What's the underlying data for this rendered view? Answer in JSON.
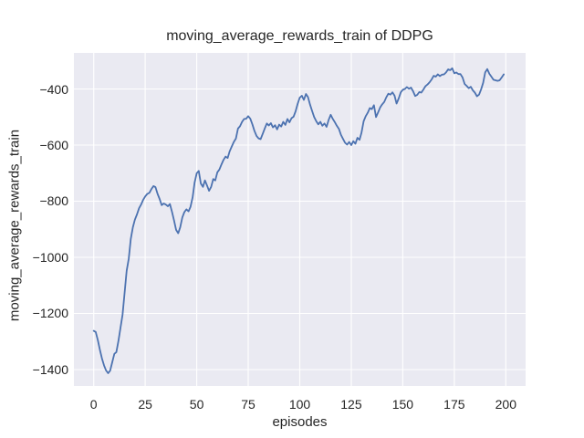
{
  "chart": {
    "title": "moving_average_rewards_train of DDPG",
    "xlabel": "episodes",
    "ylabel": "moving_average_rewards_train"
  },
  "chart_data": {
    "type": "line",
    "title": "moving_average_rewards_train of DDPG",
    "xlabel": "episodes",
    "ylabel": "moving_average_rewards_train",
    "x_description": "episode index, one data point per episode from 0 to 199",
    "values": [
      -1262,
      -1266,
      -1295,
      -1330,
      -1360,
      -1385,
      -1403,
      -1413,
      -1404,
      -1374,
      -1344,
      -1338,
      -1298,
      -1252,
      -1205,
      -1125,
      -1048,
      -1005,
      -935,
      -893,
      -866,
      -847,
      -825,
      -812,
      -795,
      -783,
      -774,
      -770,
      -757,
      -746,
      -750,
      -774,
      -792,
      -814,
      -808,
      -812,
      -818,
      -810,
      -838,
      -868,
      -902,
      -914,
      -893,
      -858,
      -839,
      -829,
      -836,
      -820,
      -786,
      -733,
      -700,
      -692,
      -737,
      -749,
      -726,
      -744,
      -763,
      -749,
      -721,
      -726,
      -697,
      -687,
      -669,
      -653,
      -641,
      -646,
      -622,
      -605,
      -589,
      -577,
      -541,
      -533,
      -517,
      -507,
      -506,
      -497,
      -506,
      -526,
      -549,
      -567,
      -576,
      -579,
      -560,
      -541,
      -523,
      -530,
      -522,
      -537,
      -529,
      -544,
      -527,
      -534,
      -517,
      -528,
      -507,
      -519,
      -504,
      -499,
      -479,
      -453,
      -431,
      -424,
      -439,
      -418,
      -429,
      -456,
      -478,
      -500,
      -515,
      -526,
      -517,
      -531,
      -523,
      -535,
      -511,
      -492,
      -506,
      -518,
      -531,
      -542,
      -564,
      -578,
      -592,
      -598,
      -589,
      -600,
      -586,
      -595,
      -574,
      -581,
      -555,
      -515,
      -497,
      -485,
      -468,
      -472,
      -458,
      -500,
      -484,
      -466,
      -455,
      -446,
      -430,
      -417,
      -420,
      -412,
      -424,
      -452,
      -434,
      -412,
      -403,
      -400,
      -393,
      -399,
      -395,
      -408,
      -425,
      -421,
      -411,
      -413,
      -402,
      -390,
      -384,
      -376,
      -366,
      -353,
      -356,
      -348,
      -354,
      -349,
      -348,
      -341,
      -330,
      -333,
      -326,
      -344,
      -341,
      -347,
      -347,
      -359,
      -382,
      -389,
      -397,
      -392,
      -405,
      -413,
      -426,
      -420,
      -402,
      -378,
      -341,
      -329,
      -346,
      -356,
      -367,
      -369,
      -371,
      -369,
      -359,
      -348
    ],
    "xticks": [
      0,
      25,
      50,
      75,
      100,
      125,
      150,
      175,
      200
    ],
    "yticks": [
      -400,
      -600,
      -800,
      -1000,
      -1200,
      -1400
    ],
    "xlim": [
      -9.6,
      209.6
    ],
    "ylim": [
      -1458.6,
      -271.5
    ],
    "grid": true,
    "legend_position": "none",
    "line_color": "#4C72B0",
    "plot_background": "#EAEAF2",
    "grid_color": "#FFFFFF",
    "text_color": "#262626",
    "figure_background": "#FFFFFF"
  }
}
